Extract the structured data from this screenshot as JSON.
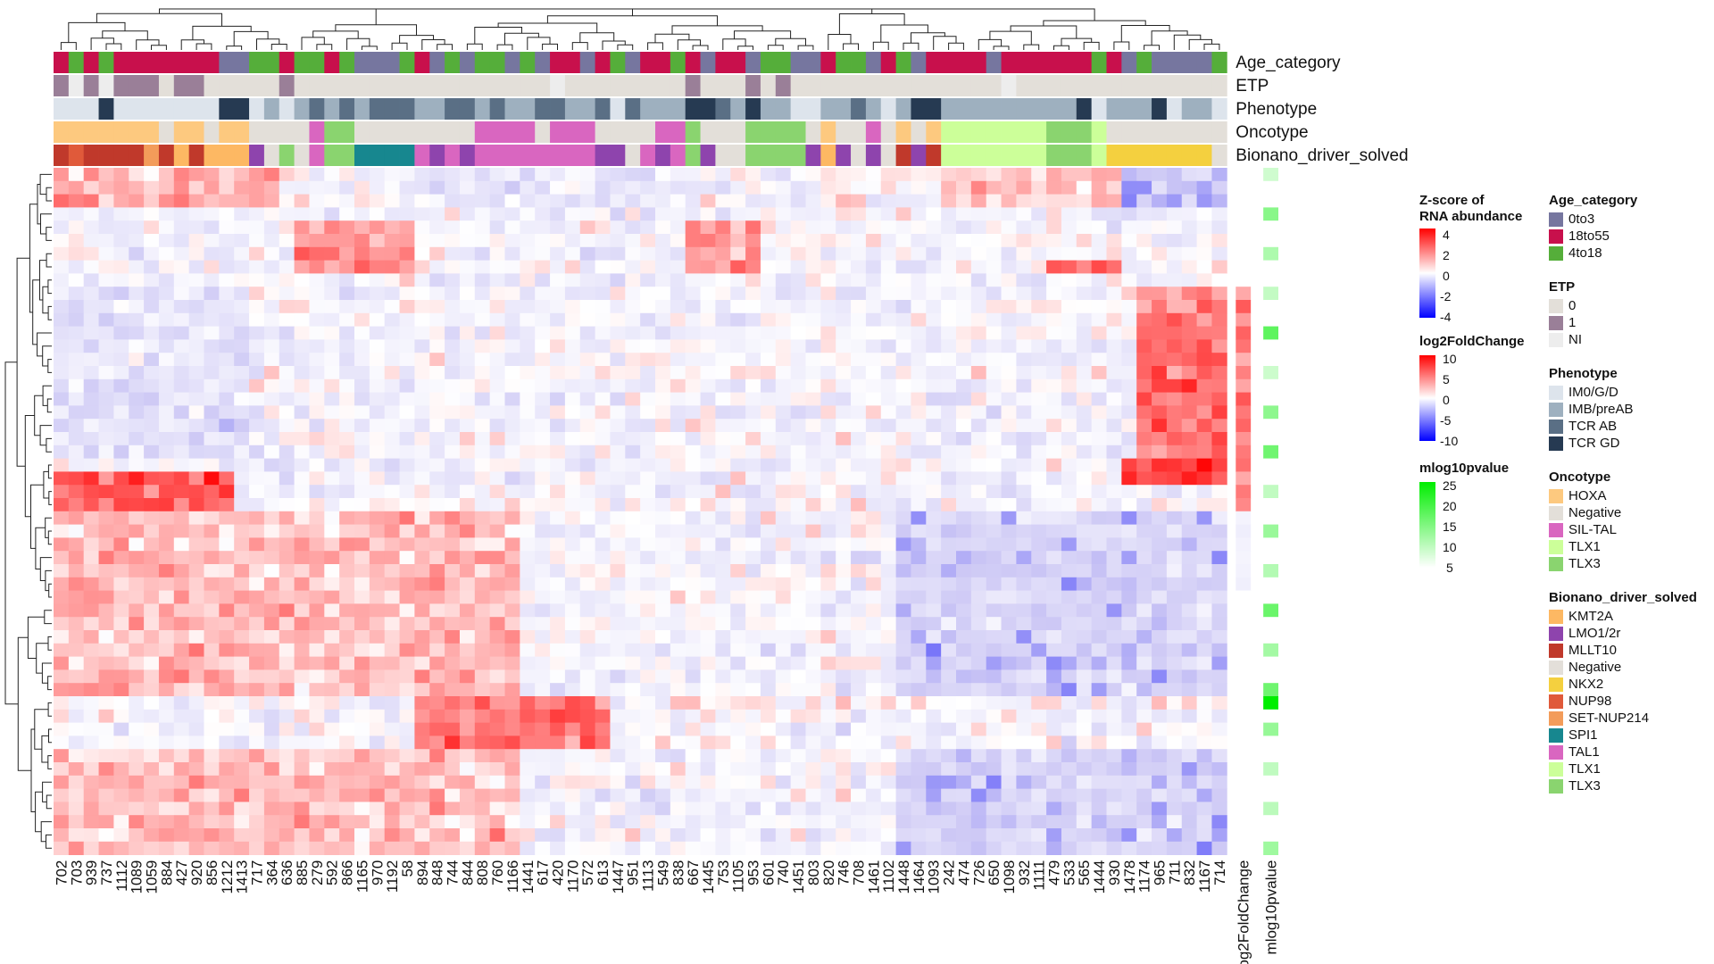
{
  "chart_data": {
    "type": "heatmap",
    "columns": [
      "702",
      "703",
      "939",
      "737",
      "1112",
      "1089",
      "1059",
      "884",
      "427",
      "920",
      "856",
      "1212",
      "1413",
      "717",
      "364",
      "636",
      "885",
      "279",
      "592",
      "866",
      "1165",
      "970",
      "1192",
      "58",
      "894",
      "848",
      "744",
      "844",
      "808",
      "760",
      "1166",
      "1441",
      "617",
      "420",
      "1170",
      "572",
      "613",
      "1447",
      "951",
      "1113",
      "549",
      "838",
      "667",
      "1445",
      "753",
      "1105",
      "953",
      "601",
      "740",
      "1451",
      "803",
      "820",
      "746",
      "708",
      "1461",
      "1102",
      "1448",
      "1464",
      "1093",
      "242",
      "474",
      "726",
      "650",
      "1098",
      "932",
      "1111",
      "479",
      "533",
      "565",
      "1444",
      "930",
      "1478",
      "1174",
      "965",
      "711",
      "832",
      "1167",
      "714"
    ],
    "extra_columns": [
      "log2FoldChange",
      "mlog10pvalue"
    ],
    "row_count": 52,
    "annotation_tracks": [
      "Age_category",
      "ETP",
      "Phenotype",
      "Oncotype",
      "Bionano_driver_solved"
    ],
    "annotations": {
      "Age_category": [
        "18to55",
        "4to18",
        "18to55",
        "4to18",
        "18to55",
        "18to55",
        "18to55",
        "18to55",
        "18to55",
        "18to55",
        "18to55",
        "0to3",
        "0to3",
        "4to18",
        "4to18",
        "18to55",
        "4to18",
        "4to18",
        "18to55",
        "4to18",
        "0to3",
        "0to3",
        "0to3",
        "4to18",
        "18to55",
        "0to3",
        "4to18",
        "0to3",
        "4to18",
        "4to18",
        "0to3",
        "4to18",
        "0to3",
        "18to55",
        "18to55",
        "0to3",
        "18to55",
        "4to18",
        "0to3",
        "18to55",
        "18to55",
        "4to18",
        "18to55",
        "0to3",
        "18to55",
        "18to55",
        "0to3",
        "4to18",
        "4to18",
        "0to3",
        "0to3",
        "18to55",
        "4to18",
        "4to18",
        "0to3",
        "18to55",
        "4to18",
        "0to3",
        "18to55",
        "18to55",
        "18to55",
        "18to55",
        "0to3",
        "18to55",
        "18to55",
        "18to55",
        "18to55",
        "18to55",
        "18to55",
        "4to18",
        "18to55",
        "0to3",
        "4to18",
        "0to3",
        "0to3",
        "0to3",
        "0to3",
        "4to18"
      ],
      "ETP": [
        "1",
        "NI",
        "1",
        "NI",
        "1",
        "1",
        "1",
        "0",
        "1",
        "1",
        "0",
        "0",
        "0",
        "0",
        "0",
        "1",
        "0",
        "0",
        "0",
        "0",
        "0",
        "0",
        "0",
        "0",
        "0",
        "0",
        "0",
        "0",
        "0",
        "0",
        "0",
        "0",
        "0",
        "NI",
        "0",
        "0",
        "0",
        "0",
        "0",
        "0",
        "0",
        "0",
        "1",
        "0",
        "0",
        "0",
        "1",
        "0",
        "1",
        "0",
        "0",
        "0",
        "0",
        "0",
        "0",
        "0",
        "0",
        "0",
        "0",
        "0",
        "0",
        "0",
        "0",
        "NI",
        "0",
        "0",
        "0",
        "0",
        "0",
        "0",
        "0",
        "0",
        "0",
        "0",
        "0",
        "0",
        "0",
        "0"
      ],
      "Phenotype": [
        "IM0/G/D",
        "IM0/G/D",
        "IM0/G/D",
        "TCR GD",
        "IM0/G/D",
        "IM0/G/D",
        "IM0/G/D",
        "IM0/G/D",
        "IM0/G/D",
        "IM0/G/D",
        "IM0/G/D",
        "TCR GD",
        "TCR GD",
        "IM0/G/D",
        "IMB/preAB",
        "IM0/G/D",
        "IMB/preAB",
        "TCR AB",
        "IMB/preAB",
        "TCR AB",
        "IMB/preAB",
        "TCR AB",
        "TCR AB",
        "TCR AB",
        "IMB/preAB",
        "IMB/preAB",
        "TCR AB",
        "TCR AB",
        "IMB/preAB",
        "TCR AB",
        "IMB/preAB",
        "IMB/preAB",
        "TCR AB",
        "TCR AB",
        "IMB/preAB",
        "IMB/preAB",
        "TCR AB",
        "IM0/G/D",
        "TCR AB",
        "IMB/preAB",
        "IMB/preAB",
        "IMB/preAB",
        "TCR GD",
        "TCR GD",
        "TCR AB",
        "IMB/preAB",
        "TCR GD",
        "IMB/preAB",
        "IMB/preAB",
        "IM0/G/D",
        "IM0/G/D",
        "IMB/preAB",
        "IMB/preAB",
        "TCR AB",
        "IMB/preAB",
        "IM0/G/D",
        "IMB/preAB",
        "TCR GD",
        "TCR GD",
        "IMB/preAB",
        "IMB/preAB",
        "IMB/preAB",
        "IMB/preAB",
        "IMB/preAB",
        "IMB/preAB",
        "IMB/preAB",
        "IMB/preAB",
        "IMB/preAB",
        "TCR GD",
        "IM0/G/D",
        "IMB/preAB",
        "IMB/preAB",
        "IMB/preAB",
        "TCR GD",
        "IM0/G/D",
        "IMB/preAB",
        "IMB/preAB",
        "IM0/G/D"
      ],
      "Oncotype": [
        "HOXA",
        "HOXA",
        "HOXA",
        "HOXA",
        "HOXA",
        "HOXA",
        "HOXA",
        "Negative",
        "HOXA",
        "HOXA",
        "Negative",
        "HOXA",
        "HOXA",
        "Negative",
        "Negative",
        "Negative",
        "Negative",
        "SIL-TAL",
        "TLX3",
        "TLX3",
        "Negative",
        "Negative",
        "Negative",
        "Negative",
        "Negative",
        "Negative",
        "Negative",
        "Negative",
        "SIL-TAL",
        "SIL-TAL",
        "SIL-TAL",
        "SIL-TAL",
        "Negative",
        "SIL-TAL",
        "SIL-TAL",
        "SIL-TAL",
        "Negative",
        "Negative",
        "Negative",
        "Negative",
        "SIL-TAL",
        "SIL-TAL",
        "TLX3",
        "Negative",
        "Negative",
        "Negative",
        "TLX3",
        "TLX3",
        "TLX3",
        "TLX3",
        "Negative",
        "HOXA",
        "Negative",
        "Negative",
        "SIL-TAL",
        "Negative",
        "HOXA",
        "Negative",
        "HOXA",
        "TLX1",
        "TLX1",
        "TLX1",
        "TLX1",
        "TLX1",
        "TLX1",
        "TLX1",
        "TLX3",
        "TLX3",
        "TLX3",
        "TLX1",
        "Negative",
        "Negative",
        "Negative",
        "Negative",
        "Negative",
        "Negative",
        "Negative",
        "Negative"
      ],
      "Bionano_driver_solved": [
        "MLLT10",
        "NUP98",
        "MLLT10",
        "MLLT10",
        "MLLT10",
        "MLLT10",
        "SET-NUP214",
        "MLLT10",
        "KMT2A",
        "MLLT10",
        "KMT2A",
        "KMT2A",
        "KMT2A",
        "LMO1/2r",
        "Negative",
        "TLX3",
        "Negative",
        "TAL1",
        "TLX3",
        "TLX3",
        "SPI1",
        "SPI1",
        "SPI1",
        "SPI1",
        "TAL1",
        "LMO1/2r",
        "TAL1",
        "LMO1/2r",
        "TAL1",
        "TAL1",
        "TAL1",
        "TAL1",
        "TAL1",
        "TAL1",
        "TAL1",
        "TAL1",
        "LMO1/2r",
        "LMO1/2r",
        "Negative",
        "TAL1",
        "LMO1/2r",
        "TAL1",
        "TLX3",
        "LMO1/2r",
        "Negative",
        "Negative",
        "TLX3",
        "TLX3",
        "TLX3",
        "TLX3",
        "LMO1/2r",
        "KMT2A",
        "LMO1/2r",
        "Negative",
        "LMO1/2r",
        "Negative",
        "MLLT10",
        "LMO1/2r",
        "MLLT10",
        "TLX1",
        "TLX1",
        "TLX1",
        "TLX1",
        "TLX1",
        "TLX1",
        "TLX1",
        "TLX3",
        "TLX3",
        "TLX3",
        "TLX1",
        "NKX2",
        "NKX2",
        "NKX2",
        "NKX2",
        "NKX2",
        "NKX2",
        "NKX2",
        "Negative"
      ]
    },
    "legends": {
      "zscore": {
        "title_line1": "Z-score of",
        "title_line2": "RNA abundance",
        "ticks": [
          "4",
          "2",
          "0",
          "-2",
          "-4"
        ],
        "range": [
          -4,
          4
        ]
      },
      "lfc": {
        "title": "log2FoldChange",
        "ticks": [
          "10",
          "5",
          "0",
          "-5",
          "-10"
        ],
        "range": [
          -10,
          10
        ]
      },
      "pval": {
        "title": "mlog10pvalue",
        "ticks": [
          "25",
          "20",
          "15",
          "10",
          "5"
        ],
        "range": [
          5,
          25
        ]
      },
      "Age_category": {
        "title": "Age_category",
        "items": [
          {
            "label": "0to3",
            "color": "#76769f"
          },
          {
            "label": "18to55",
            "color": "#c8104c"
          },
          {
            "label": "4to18",
            "color": "#55ae3a"
          }
        ]
      },
      "ETP": {
        "title": "ETP",
        "items": [
          {
            "label": "0",
            "color": "#e3dfd9"
          },
          {
            "label": "1",
            "color": "#9a7f98"
          },
          {
            "label": "NI",
            "color": "#ededed"
          }
        ]
      },
      "Phenotype": {
        "title": "Phenotype",
        "items": [
          {
            "label": "IM0/G/D",
            "color": "#dde4ec"
          },
          {
            "label": "IMB/preAB",
            "color": "#9eb0bf"
          },
          {
            "label": "TCR AB",
            "color": "#5a6f85"
          },
          {
            "label": "TCR GD",
            "color": "#263a52"
          }
        ]
      },
      "Oncotype": {
        "title": "Oncotype",
        "items": [
          {
            "label": "HOXA",
            "color": "#fdc97f"
          },
          {
            "label": "Negative",
            "color": "#e3dfd9"
          },
          {
            "label": "SIL-TAL",
            "color": "#d966c0"
          },
          {
            "label": "TLX1",
            "color": "#ccff99"
          },
          {
            "label": "TLX3",
            "color": "#8ad46f"
          }
        ]
      },
      "Bionano_driver_solved": {
        "title": "Bionano_driver_solved",
        "items": [
          {
            "label": "KMT2A",
            "color": "#fdb863"
          },
          {
            "label": "LMO1/2r",
            "color": "#8e44ad"
          },
          {
            "label": "MLLT10",
            "color": "#c0392b"
          },
          {
            "label": "Negative",
            "color": "#e3dfd9"
          },
          {
            "label": "NKX2",
            "color": "#f4d03f"
          },
          {
            "label": "NUP98",
            "color": "#e05a3a"
          },
          {
            "label": "SET-NUP214",
            "color": "#f39c5a"
          },
          {
            "label": "SPI1",
            "color": "#17878f"
          },
          {
            "label": "TAL1",
            "color": "#d966c0"
          },
          {
            "label": "TLX1",
            "color": "#ccff99"
          },
          {
            "label": "TLX3",
            "color": "#8ad46f"
          }
        ]
      }
    },
    "zscore_blocks": [
      {
        "rows": [
          0,
          3
        ],
        "cols": [
          0,
          14
        ],
        "value": 1.2
      },
      {
        "rows": [
          0,
          3
        ],
        "cols": [
          24,
          42
        ],
        "value": -0.8
      },
      {
        "rows": [
          0,
          3
        ],
        "cols": [
          59,
          70
        ],
        "value": 1.0
      },
      {
        "rows": [
          0,
          3
        ],
        "cols": [
          71,
          77
        ],
        "value": -2.0
      },
      {
        "rows": [
          4,
          8
        ],
        "cols": [
          16,
          23
        ],
        "value": 1.6
      },
      {
        "rows": [
          4,
          8
        ],
        "cols": [
          42,
          46
        ],
        "value": 1.6
      },
      {
        "rows": [
          7,
          8
        ],
        "cols": [
          66,
          70
        ],
        "value": 2.5
      },
      {
        "rows": [
          9,
          22
        ],
        "cols": [
          72,
          77
        ],
        "value": 2.2
      },
      {
        "rows": [
          9,
          22
        ],
        "cols": [
          0,
          12
        ],
        "value": -1.0
      },
      {
        "rows": [
          22,
          24
        ],
        "cols": [
          71,
          77
        ],
        "value": 3.0
      },
      {
        "rows": [
          23,
          26
        ],
        "cols": [
          0,
          11
        ],
        "value": 2.6
      },
      {
        "rows": [
          26,
          40
        ],
        "cols": [
          0,
          30
        ],
        "value": 1.0
      },
      {
        "rows": [
          26,
          40
        ],
        "cols": [
          56,
          77
        ],
        "value": -1.6
      },
      {
        "rows": [
          40,
          44
        ],
        "cols": [
          24,
          36
        ],
        "value": 2.2
      },
      {
        "rows": [
          44,
          52
        ],
        "cols": [
          0,
          30
        ],
        "value": 1.0
      },
      {
        "rows": [
          44,
          52
        ],
        "cols": [
          56,
          77
        ],
        "value": -1.6
      }
    ]
  }
}
